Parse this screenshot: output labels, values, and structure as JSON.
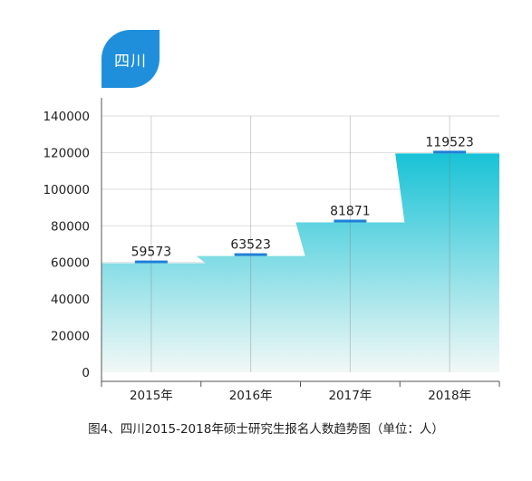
{
  "region_label": "四川",
  "caption": "图4、四川2015-2018年硕士研究生报名人数趋势图（单位：人）",
  "colors": {
    "area_top": "#18c2d6",
    "area_bottom": "#f2f8f6",
    "marker": "#1e7fd6",
    "badge": "#1f8fdc",
    "grid": "#dddddd",
    "axis": "#555555"
  },
  "chart_data": {
    "type": "area",
    "categories": [
      "2015年",
      "2016年",
      "2017年",
      "2018年"
    ],
    "values": [
      59573,
      63523,
      81871,
      119523
    ],
    "value_labels": [
      "59573",
      "63523",
      "81871",
      "119523"
    ],
    "y_ticks": [
      0,
      20000,
      40000,
      60000,
      80000,
      100000,
      120000,
      140000
    ],
    "ylim": [
      0,
      140000
    ],
    "grid": true,
    "title": "",
    "xlabel": "",
    "ylabel": ""
  }
}
